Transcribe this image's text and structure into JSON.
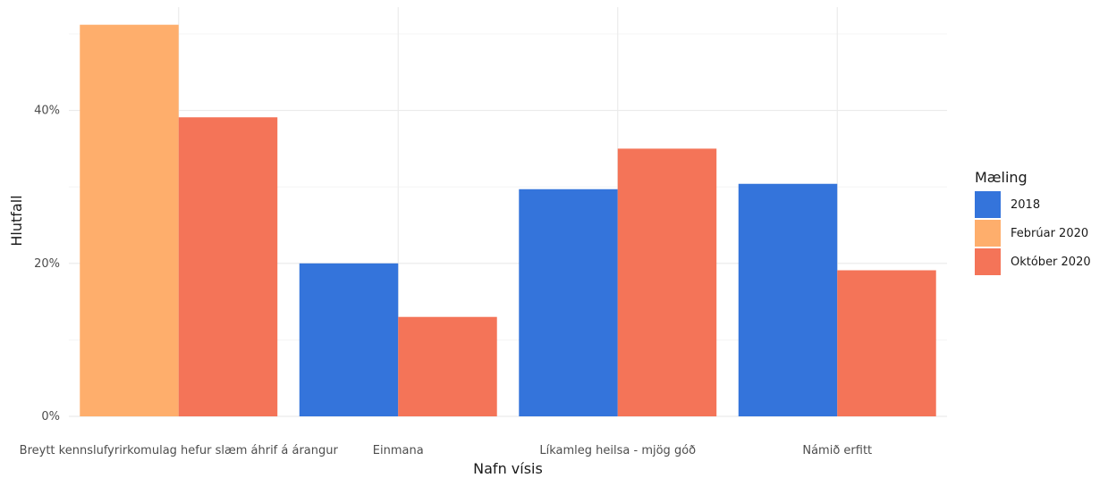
{
  "chart_data": {
    "type": "bar",
    "xlabel": "Nafn vísis",
    "ylabel": "Hlutfall",
    "ylim": [
      0,
      53.5
    ],
    "y_ticks": [
      0,
      20,
      40
    ],
    "y_tick_labels": [
      "0%",
      "20%",
      "40%"
    ],
    "grid": true,
    "legend_position": "right",
    "legend_title": "Mæling",
    "categories": [
      "Breytt kennslufyrirkomulag hefur slæm áhrif á árangur",
      "Einmana",
      "Líkamleg heilsa - mjög góð",
      "Námið erfitt"
    ],
    "series": [
      {
        "name": "2018",
        "color": "#3474db",
        "values": [
          null,
          20.0,
          29.7,
          30.4
        ]
      },
      {
        "name": "Febrúar 2020",
        "color": "#feae6c",
        "values": [
          51.2,
          null,
          null,
          null
        ]
      },
      {
        "name": "Október 2020",
        "color": "#f47458",
        "values": [
          39.1,
          13.0,
          35.0,
          19.1
        ]
      }
    ]
  }
}
